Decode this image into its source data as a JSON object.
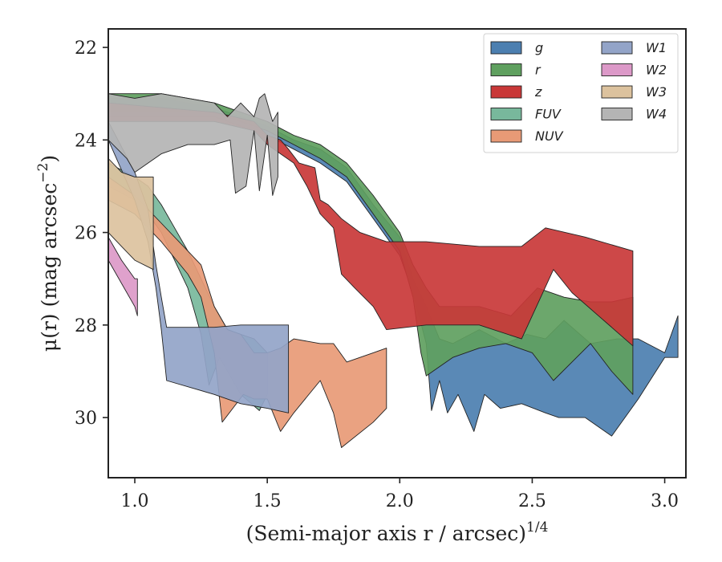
{
  "chart_data": {
    "type": "area",
    "xlabel": "(Semi-major axis r / arcsec)",
    "xlabel_exponent": "1/4",
    "ylabel": "μ(r) (mag arcsec",
    "ylabel_exponent": "−2",
    "ylabel_suffix": ")",
    "xlim": [
      0.9,
      3.08
    ],
    "ylim": [
      31.3,
      21.6
    ],
    "y_inverted": true,
    "xticks": [
      1.0,
      1.5,
      2.0,
      2.5,
      3.0
    ],
    "xtick_labels": [
      "1.0",
      "1.5",
      "2.0",
      "2.5",
      "3.0"
    ],
    "yticks": [
      22,
      24,
      26,
      28,
      30
    ],
    "ytick_labels": [
      "22",
      "24",
      "26",
      "28",
      "30"
    ],
    "grid": false,
    "legend_position": "top-right",
    "legend_columns": 2,
    "series": [
      {
        "name": "g",
        "color": "#4c7fb0",
        "upper": [
          [
            0.9,
            23.1
          ],
          [
            1.1,
            23.1
          ],
          [
            1.3,
            23.3
          ],
          [
            1.4,
            23.5
          ],
          [
            1.5,
            23.7
          ],
          [
            1.6,
            24.0
          ],
          [
            1.7,
            24.2
          ],
          [
            1.8,
            24.6
          ],
          [
            1.9,
            25.4
          ],
          [
            2.0,
            26.1
          ],
          [
            2.05,
            27.0
          ],
          [
            2.1,
            27.6
          ],
          [
            2.15,
            28.3
          ],
          [
            2.2,
            28.4
          ],
          [
            2.3,
            28.1
          ],
          [
            2.4,
            28.4
          ],
          [
            2.48,
            28.2
          ],
          [
            2.55,
            28.3
          ],
          [
            2.62,
            27.9
          ],
          [
            2.72,
            28.4
          ],
          [
            2.82,
            28.3
          ],
          [
            2.9,
            28.3
          ],
          [
            3.0,
            28.6
          ],
          [
            3.05,
            27.8
          ]
        ],
        "lower": [
          [
            0.9,
            23.5
          ],
          [
            1.1,
            23.5
          ],
          [
            1.3,
            23.5
          ],
          [
            1.4,
            23.7
          ],
          [
            1.5,
            23.9
          ],
          [
            1.6,
            24.2
          ],
          [
            1.7,
            24.5
          ],
          [
            1.8,
            24.9
          ],
          [
            1.9,
            25.7
          ],
          [
            2.0,
            26.5
          ],
          [
            2.05,
            27.3
          ],
          [
            2.1,
            28.4
          ],
          [
            2.12,
            29.85
          ],
          [
            2.15,
            29.2
          ],
          [
            2.18,
            29.9
          ],
          [
            2.22,
            29.5
          ],
          [
            2.28,
            30.3
          ],
          [
            2.32,
            29.5
          ],
          [
            2.38,
            29.8
          ],
          [
            2.46,
            29.7
          ],
          [
            2.55,
            29.9
          ],
          [
            2.6,
            30.0
          ],
          [
            2.7,
            30.0
          ],
          [
            2.8,
            30.4
          ],
          [
            2.9,
            29.6
          ],
          [
            3.0,
            28.7
          ],
          [
            3.05,
            28.7
          ]
        ]
      },
      {
        "name": "r",
        "color": "#5fa05f",
        "upper": [
          [
            0.9,
            23.0
          ],
          [
            1.1,
            23.0
          ],
          [
            1.3,
            23.2
          ],
          [
            1.4,
            23.4
          ],
          [
            1.5,
            23.6
          ],
          [
            1.6,
            23.9
          ],
          [
            1.7,
            24.1
          ],
          [
            1.8,
            24.5
          ],
          [
            1.9,
            25.2
          ],
          [
            2.0,
            26.0
          ],
          [
            2.05,
            26.7
          ],
          [
            2.1,
            27.2
          ],
          [
            2.15,
            27.6
          ],
          [
            2.22,
            27.6
          ],
          [
            2.3,
            27.6
          ],
          [
            2.42,
            27.8
          ],
          [
            2.52,
            27.2
          ],
          [
            2.62,
            27.4
          ],
          [
            2.72,
            27.5
          ],
          [
            2.8,
            27.5
          ],
          [
            2.88,
            27.4
          ]
        ],
        "lower": [
          [
            0.9,
            23.4
          ],
          [
            1.1,
            23.4
          ],
          [
            1.3,
            23.4
          ],
          [
            1.4,
            23.6
          ],
          [
            1.5,
            23.8
          ],
          [
            1.6,
            24.1
          ],
          [
            1.7,
            24.4
          ],
          [
            1.8,
            24.8
          ],
          [
            1.9,
            25.6
          ],
          [
            2.0,
            26.4
          ],
          [
            2.05,
            27.4
          ],
          [
            2.08,
            28.6
          ],
          [
            2.1,
            29.1
          ],
          [
            2.15,
            28.9
          ],
          [
            2.2,
            28.7
          ],
          [
            2.3,
            28.5
          ],
          [
            2.4,
            28.4
          ],
          [
            2.5,
            28.6
          ],
          [
            2.58,
            29.2
          ],
          [
            2.65,
            28.8
          ],
          [
            2.72,
            28.4
          ],
          [
            2.8,
            29.0
          ],
          [
            2.88,
            29.5
          ]
        ]
      },
      {
        "name": "z",
        "color": "#c93838",
        "upper": [
          [
            0.9,
            23.2
          ],
          [
            1.1,
            23.3
          ],
          [
            1.3,
            23.4
          ],
          [
            1.45,
            23.6
          ],
          [
            1.5,
            23.9
          ],
          [
            1.55,
            24.0
          ],
          [
            1.58,
            24.2
          ],
          [
            1.62,
            24.5
          ],
          [
            1.68,
            24.6
          ],
          [
            1.7,
            25.3
          ],
          [
            1.73,
            25.4
          ],
          [
            1.78,
            25.7
          ],
          [
            1.85,
            26.0
          ],
          [
            1.95,
            26.2
          ],
          [
            2.1,
            26.2
          ],
          [
            2.3,
            26.3
          ],
          [
            2.46,
            26.3
          ],
          [
            2.55,
            25.9
          ],
          [
            2.7,
            26.1
          ],
          [
            2.88,
            26.4
          ]
        ],
        "lower": [
          [
            0.9,
            23.6
          ],
          [
            1.1,
            23.6
          ],
          [
            1.3,
            23.6
          ],
          [
            1.45,
            23.8
          ],
          [
            1.5,
            24.1
          ],
          [
            1.55,
            24.3
          ],
          [
            1.6,
            24.5
          ],
          [
            1.65,
            25.0
          ],
          [
            1.7,
            25.6
          ],
          [
            1.75,
            25.9
          ],
          [
            1.78,
            26.9
          ],
          [
            1.83,
            27.2
          ],
          [
            1.9,
            27.6
          ],
          [
            1.95,
            28.1
          ],
          [
            2.1,
            28.0
          ],
          [
            2.3,
            28.0
          ],
          [
            2.46,
            28.3
          ],
          [
            2.58,
            26.8
          ],
          [
            2.65,
            27.3
          ],
          [
            2.75,
            27.8
          ],
          [
            2.88,
            28.45
          ]
        ]
      },
      {
        "name": "FUV",
        "color": "#78b89c",
        "upper": [
          [
            0.9,
            24.5
          ],
          [
            1.0,
            24.8
          ],
          [
            1.05,
            25.0
          ],
          [
            1.1,
            25.4
          ],
          [
            1.15,
            25.9
          ],
          [
            1.2,
            26.4
          ],
          [
            1.25,
            27.0
          ],
          [
            1.3,
            27.6
          ],
          [
            1.35,
            28.1
          ],
          [
            1.4,
            28.2
          ],
          [
            1.45,
            28.3
          ],
          [
            1.5,
            28.6
          ]
        ],
        "lower": [
          [
            0.9,
            25.0
          ],
          [
            1.0,
            25.3
          ],
          [
            1.05,
            25.6
          ],
          [
            1.1,
            26.0
          ],
          [
            1.15,
            26.6
          ],
          [
            1.2,
            27.2
          ],
          [
            1.25,
            28.2
          ],
          [
            1.28,
            29.3
          ],
          [
            1.32,
            28.7
          ],
          [
            1.4,
            29.5
          ],
          [
            1.47,
            29.85
          ],
          [
            1.5,
            29.5
          ]
        ]
      },
      {
        "name": "NUV",
        "color": "#e89a76",
        "upper": [
          [
            0.9,
            24.8
          ],
          [
            1.0,
            25.2
          ],
          [
            1.1,
            25.8
          ],
          [
            1.2,
            26.4
          ],
          [
            1.25,
            26.7
          ],
          [
            1.3,
            27.6
          ],
          [
            1.35,
            28.1
          ],
          [
            1.4,
            28.2
          ],
          [
            1.45,
            28.6
          ],
          [
            1.5,
            28.6
          ],
          [
            1.55,
            28.5
          ],
          [
            1.6,
            28.3
          ],
          [
            1.7,
            28.4
          ],
          [
            1.75,
            28.4
          ],
          [
            1.8,
            28.8
          ],
          [
            1.9,
            28.6
          ],
          [
            1.95,
            28.5
          ]
        ],
        "lower": [
          [
            0.9,
            25.3
          ],
          [
            1.0,
            25.6
          ],
          [
            1.1,
            26.2
          ],
          [
            1.2,
            26.9
          ],
          [
            1.25,
            27.4
          ],
          [
            1.3,
            28.6
          ],
          [
            1.33,
            30.1
          ],
          [
            1.37,
            29.8
          ],
          [
            1.41,
            29.5
          ],
          [
            1.45,
            29.6
          ],
          [
            1.5,
            29.6
          ],
          [
            1.55,
            30.3
          ],
          [
            1.6,
            29.9
          ],
          [
            1.7,
            29.2
          ],
          [
            1.75,
            29.9
          ],
          [
            1.78,
            30.65
          ],
          [
            1.9,
            30.1
          ],
          [
            1.95,
            29.8
          ]
        ]
      },
      {
        "name": "W1",
        "color": "#93a4c8",
        "upper": [
          [
            0.9,
            23.6
          ],
          [
            1.0,
            24.7
          ],
          [
            1.05,
            25.5
          ],
          [
            1.08,
            26.7
          ],
          [
            1.1,
            27.4
          ],
          [
            1.12,
            28.05
          ],
          [
            1.3,
            28.05
          ],
          [
            1.4,
            28.0
          ],
          [
            1.5,
            28.0
          ],
          [
            1.58,
            28.0
          ]
        ],
        "lower": [
          [
            0.9,
            24.0
          ],
          [
            1.0,
            25.3
          ],
          [
            1.05,
            26.2
          ],
          [
            1.08,
            27.2
          ],
          [
            1.1,
            28.1
          ],
          [
            1.12,
            29.2
          ],
          [
            1.3,
            29.5
          ],
          [
            1.4,
            29.7
          ],
          [
            1.5,
            29.8
          ],
          [
            1.58,
            29.9
          ]
        ]
      },
      {
        "name": "W2",
        "color": "#dc99c8",
        "upper": [
          [
            0.9,
            26.1
          ],
          [
            0.95,
            26.6
          ],
          [
            1.0,
            27.0
          ],
          [
            1.01,
            27.0
          ]
        ],
        "lower": [
          [
            0.9,
            26.6
          ],
          [
            0.95,
            27.1
          ],
          [
            1.0,
            27.6
          ],
          [
            1.01,
            27.8
          ]
        ]
      },
      {
        "name": "W3",
        "color": "#dcc29e",
        "upper": [
          [
            0.9,
            24.4
          ],
          [
            0.95,
            24.7
          ],
          [
            1.0,
            24.8
          ],
          [
            1.07,
            24.8
          ]
        ],
        "lower": [
          [
            0.9,
            26.0
          ],
          [
            0.95,
            26.3
          ],
          [
            1.0,
            26.6
          ],
          [
            1.07,
            26.8
          ]
        ]
      },
      {
        "name": "W4",
        "color": "#b4b4b4",
        "upper": [
          [
            0.9,
            23.0
          ],
          [
            1.0,
            23.1
          ],
          [
            1.1,
            23.0
          ],
          [
            1.2,
            23.1
          ],
          [
            1.3,
            23.2
          ],
          [
            1.35,
            23.5
          ],
          [
            1.4,
            23.2
          ],
          [
            1.45,
            23.5
          ],
          [
            1.47,
            23.1
          ],
          [
            1.49,
            23.0
          ],
          [
            1.5,
            23.2
          ],
          [
            1.52,
            23.6
          ],
          [
            1.54,
            23.4
          ]
        ],
        "lower": [
          [
            0.9,
            24.0
          ],
          [
            0.97,
            24.4
          ],
          [
            1.0,
            24.7
          ],
          [
            1.1,
            24.3
          ],
          [
            1.2,
            24.1
          ],
          [
            1.3,
            24.1
          ],
          [
            1.36,
            24.0
          ],
          [
            1.38,
            25.15
          ],
          [
            1.42,
            25.0
          ],
          [
            1.45,
            23.8
          ],
          [
            1.47,
            25.1
          ],
          [
            1.5,
            23.9
          ],
          [
            1.52,
            25.2
          ],
          [
            1.54,
            24.8
          ]
        ]
      }
    ]
  }
}
